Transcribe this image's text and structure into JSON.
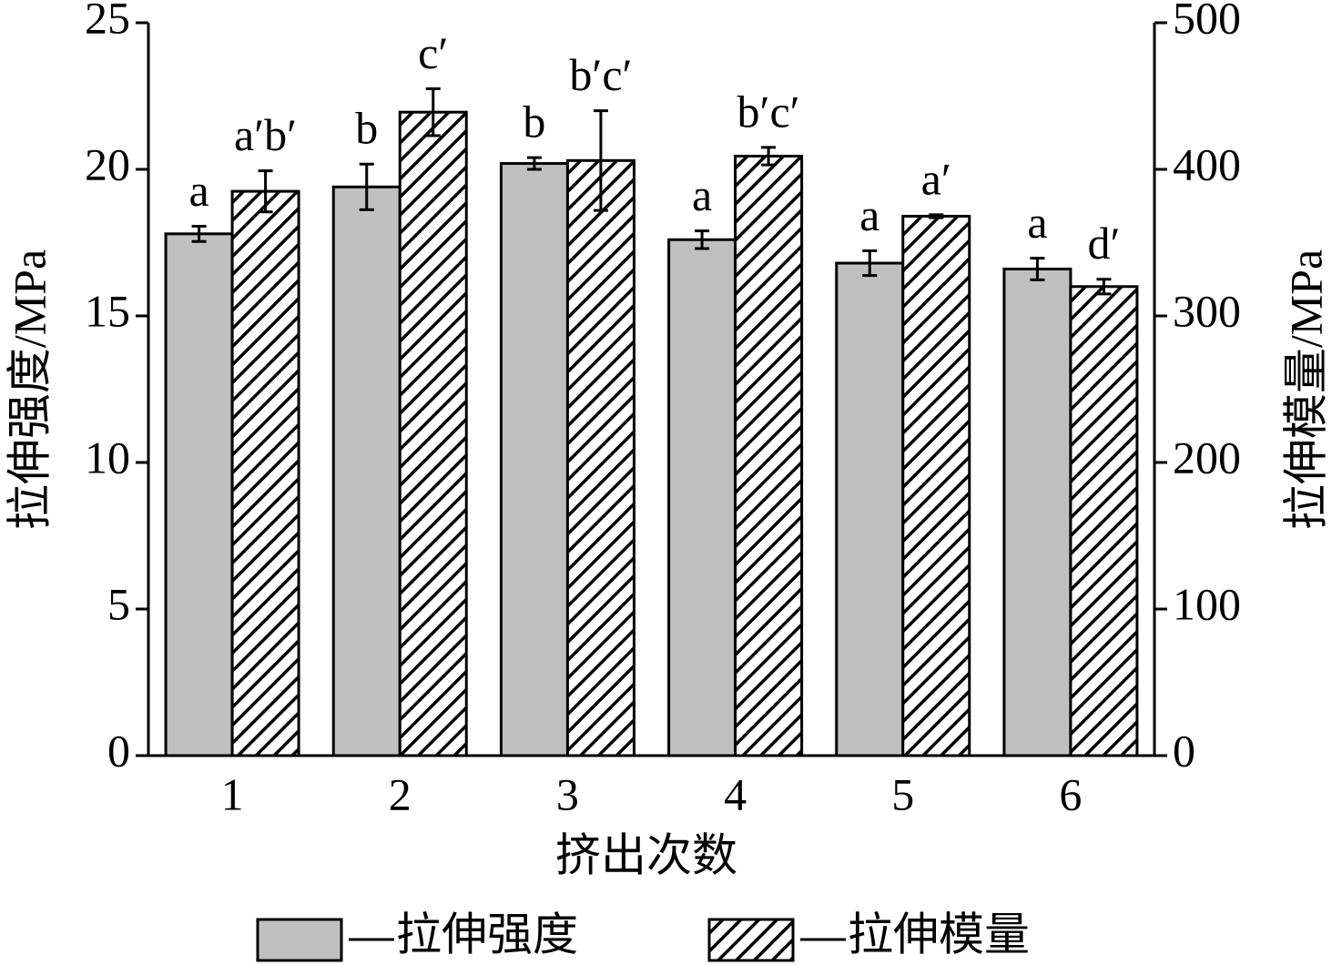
{
  "chart_data": {
    "type": "bar",
    "categories": [
      "1",
      "2",
      "3",
      "4",
      "5",
      "6"
    ],
    "xlabel": "挤出次数",
    "ylabel": "拉伸强度/MPa",
    "y2label": "拉伸模量/MPa",
    "ylim": [
      0,
      25
    ],
    "yticks": [
      0,
      5,
      10,
      15,
      20,
      25
    ],
    "y2lim": [
      0,
      500
    ],
    "y2ticks": [
      0,
      100,
      200,
      300,
      400,
      500
    ],
    "series": [
      {
        "name": "拉伸强度",
        "color": "#c0c0c0",
        "values": [
          17.8,
          19.4,
          20.2,
          17.6,
          16.8,
          16.6
        ],
        "errors": [
          0.26,
          0.78,
          0.2,
          0.3,
          0.42,
          0.37
        ],
        "labels": [
          "a",
          "b",
          "b",
          "a",
          "a",
          "a"
        ]
      },
      {
        "name": "拉伸模量",
        "color": "#000000",
        "pattern": "hatch",
        "axis": "y2",
        "values": [
          385,
          439,
          406,
          409,
          368,
          320
        ],
        "errors": [
          14,
          16,
          34,
          6,
          1,
          5
        ],
        "labels": [
          "a′b′",
          "c′",
          "b′c′",
          "b′c′",
          "a′",
          "d′"
        ]
      }
    ]
  }
}
